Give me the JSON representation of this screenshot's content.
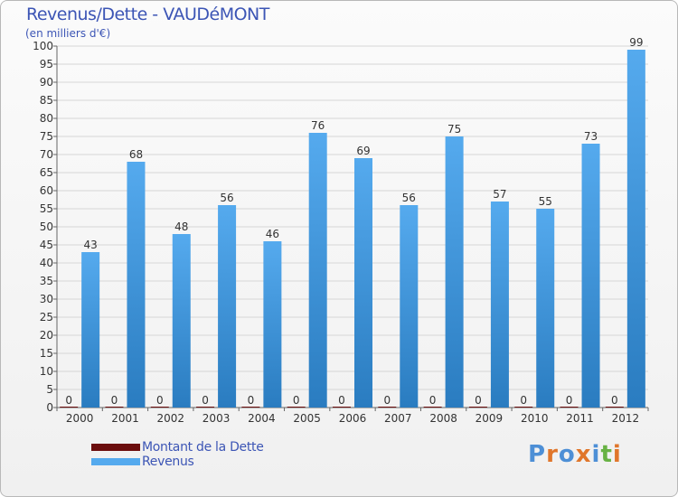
{
  "header": {
    "title": "Revenus/Dette - VAUDéMONT",
    "subtitle": "(en milliers d'€)"
  },
  "colors": {
    "dette": "#6b0d0d",
    "revenus": "#55aaee",
    "revenus_dark": "#2a7cc0",
    "grid": "#d6d6d6",
    "title": "#3c55b5"
  },
  "legend": {
    "items": [
      {
        "label": "Montant de la Dette",
        "color": "#6b0d0d"
      },
      {
        "label": "Revenus",
        "color": "#55aaee"
      }
    ]
  },
  "logo": {
    "text": "Proxiti",
    "letters": [
      "P",
      "r",
      "o",
      "x",
      "i",
      "t",
      "i"
    ],
    "letter_colors": [
      "#4d8fd6",
      "#e0762b",
      "#4d8fd6",
      "#e0762b",
      "#4d8fd6",
      "#68b244",
      "#e0762b"
    ]
  },
  "chart_data": {
    "type": "bar",
    "title": "Revenus/Dette - VAUDéMONT",
    "ylabel": "(en milliers d'€)",
    "xlabel": "",
    "categories": [
      "2000",
      "2001",
      "2002",
      "2003",
      "2004",
      "2005",
      "2006",
      "2007",
      "2008",
      "2009",
      "2010",
      "2011",
      "2012"
    ],
    "series": [
      {
        "name": "Montant de la Dette",
        "values": [
          0,
          0,
          0,
          0,
          0,
          0,
          0,
          0,
          0,
          0,
          0,
          0,
          0
        ]
      },
      {
        "name": "Revenus",
        "values": [
          43,
          68,
          48,
          56,
          46,
          76,
          69,
          56,
          75,
          57,
          55,
          73,
          99
        ]
      }
    ],
    "ylim": [
      0,
      100
    ],
    "ytick_step": 5,
    "grid": true,
    "legend_position": "bottom-left"
  }
}
